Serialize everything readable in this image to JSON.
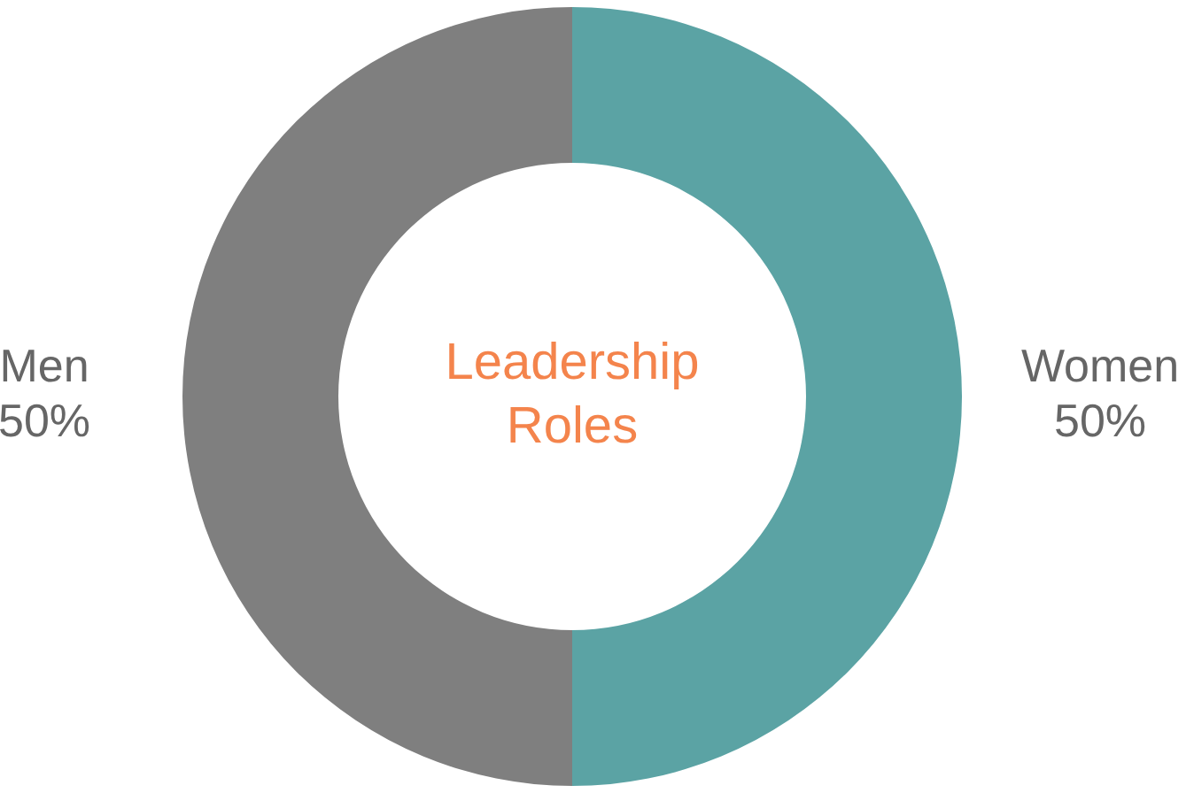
{
  "chart_data": {
    "type": "donut",
    "title": "Leadership Roles",
    "categories": [
      "Women",
      "Men"
    ],
    "values": [
      50,
      50
    ],
    "colors": [
      "#5ba3a4",
      "#7f7f7f"
    ],
    "value_labels": [
      "50%",
      "50%"
    ],
    "legend": false
  }
}
